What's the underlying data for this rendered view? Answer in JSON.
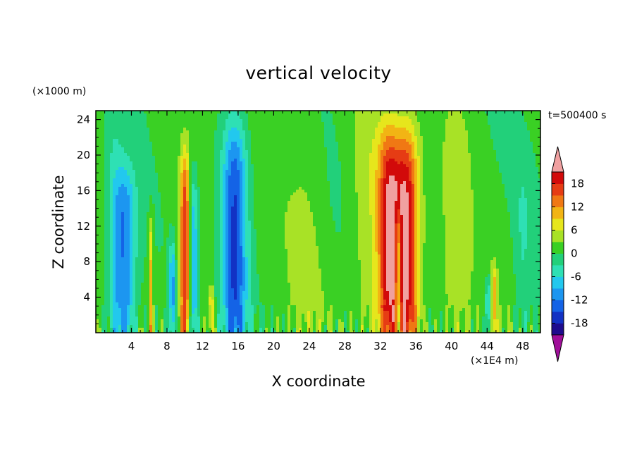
{
  "chart_data": {
    "type": "heatmap",
    "title": "vertical velocity",
    "timestamp": "t=500400 s",
    "x_axis": {
      "label": "X coordinate",
      "unit_label": "(×1E4 m)",
      "range": [
        0,
        50
      ],
      "ticks": [
        4,
        8,
        12,
        16,
        20,
        24,
        28,
        32,
        36,
        40,
        44,
        48
      ],
      "tick_labels": [
        "4",
        "8",
        "12",
        "16",
        "20",
        "24",
        "28",
        "32",
        "36",
        "40",
        "44",
        "48"
      ]
    },
    "y_axis": {
      "label": "Z coordinate",
      "unit_label": "(×1000 m)",
      "range": [
        0,
        25
      ],
      "ticks": [
        4,
        8,
        12,
        16,
        20,
        24
      ],
      "tick_labels": [
        "4",
        "8",
        "12",
        "16",
        "20",
        "24"
      ]
    },
    "colorbar": {
      "levels": [
        -21,
        -18,
        -15,
        -12,
        -9,
        -6,
        -3,
        0,
        3,
        6,
        9,
        12,
        15,
        18,
        21
      ],
      "label_values": [
        18,
        12,
        6,
        0,
        -6,
        -12,
        -18
      ],
      "label_texts": [
        "18",
        "12",
        "6",
        "0",
        "-6",
        "-12",
        "-18"
      ],
      "colors": [
        "#a00f9a",
        "#1e0c8e",
        "#1232c4",
        "#1463e6",
        "#1c96f0",
        "#22c8ee",
        "#2ee0b4",
        "#22d07a",
        "#3ad024",
        "#a8e226",
        "#e6e61c",
        "#f2b414",
        "#f07814",
        "#e63c14",
        "#d20a0a",
        "#f0a0a0"
      ]
    },
    "features": [
      {
        "x": 3.2,
        "z_top": 17.5,
        "w": 1.3,
        "peak": -13
      },
      {
        "x": 10.0,
        "z_top": 19.0,
        "w": 0.55,
        "peak": 17
      },
      {
        "x": 11.0,
        "z_top": 16.5,
        "w": 0.45,
        "peak": -10
      },
      {
        "x": 8.6,
        "z_top": 9.5,
        "w": 0.3,
        "peak": -11
      },
      {
        "x": 15.6,
        "z_top": 22.5,
        "w": 1.4,
        "peak": -16
      },
      {
        "x": 33.0,
        "z_top": 21.5,
        "w": 1.3,
        "peak": 19
      },
      {
        "x": 35.0,
        "z_top": 21.5,
        "w": 1.3,
        "peak": 19
      },
      {
        "x": 34.0,
        "z_top": 13.0,
        "w": 0.35,
        "peak": -12
      },
      {
        "x": 44.1,
        "z_top": 6.0,
        "w": 0.3,
        "peak": -9
      },
      {
        "x": 44.8,
        "z_top": 7.0,
        "w": 0.3,
        "peak": 9
      },
      {
        "x": 6.2,
        "z_top": 12.0,
        "w": 0.25,
        "peak": 9
      },
      {
        "x": 13.0,
        "z_top": 5.0,
        "w": 0.3,
        "peak": 8
      },
      {
        "x": 2.0,
        "z_top": 24.0,
        "w": 1.0,
        "peak": -4
      },
      {
        "x": 24.0,
        "z_top": 25.0,
        "w": 2.0,
        "peak": 2
      },
      {
        "x": 40.5,
        "z_top": 24.0,
        "w": 1.5,
        "peak": 4
      },
      {
        "x": 48.0,
        "z_top": 18.0,
        "w": 0.9,
        "peak": -3
      },
      {
        "x": 30.5,
        "z_top": 24.5,
        "w": 2.0,
        "peak": 4
      }
    ]
  }
}
